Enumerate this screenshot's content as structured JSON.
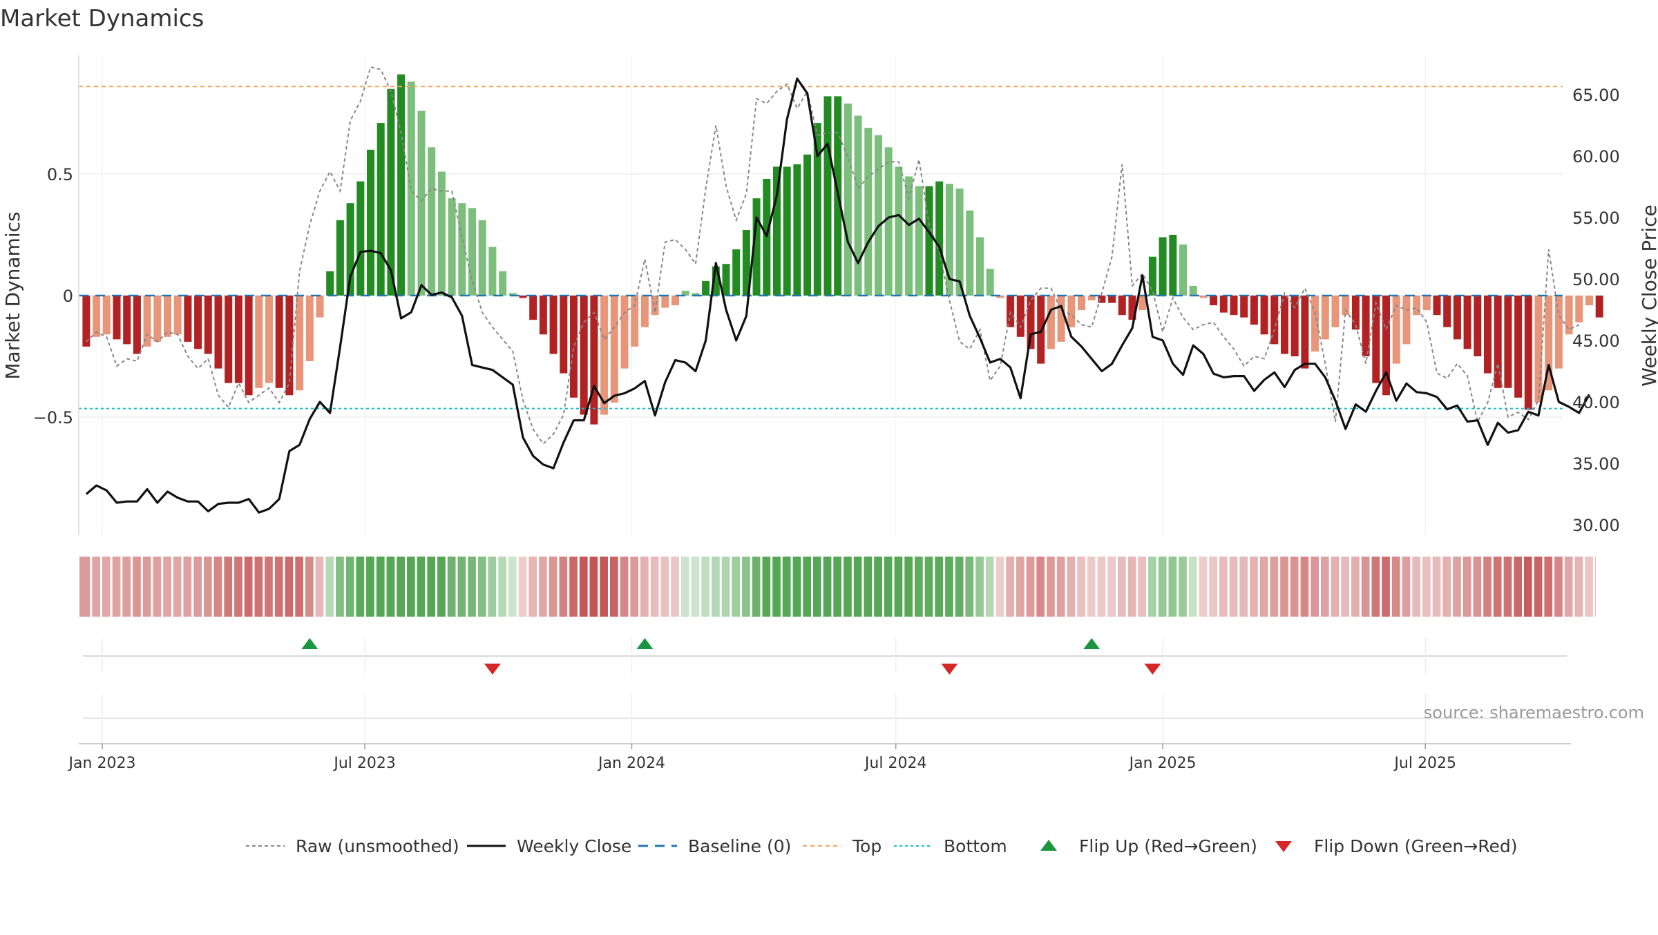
{
  "chart_data": {
    "type": "bar",
    "title": "Market Dynamics",
    "ylabel_left": "Market Dynamics",
    "ylabel_right": "Weekly Close Price",
    "source": "source: sharemaestro.com",
    "left_axis": {
      "ylim": [
        -0.98,
        0.98
      ],
      "ticks": [
        0.5,
        0,
        -0.5
      ],
      "tick_labels": [
        "0.5",
        "0",
        "−0.5"
      ]
    },
    "right_axis": {
      "ylim": [
        29.0,
        68.5
      ],
      "ticks": [
        30,
        35,
        40,
        45,
        50,
        55,
        60,
        65
      ],
      "tick_labels": [
        "30.00",
        "35.00",
        "40.00",
        "45.00",
        "50.00",
        "55.00",
        "60.00",
        "65.00"
      ]
    },
    "x_axis": {
      "start": "2023-01-01",
      "end": "2025-10-12",
      "ticks": [
        "2023-01-01",
        "2023-07-01",
        "2024-01-01",
        "2024-07-01",
        "2025-01-01",
        "2025-07-01"
      ],
      "tick_labels": [
        "Jan 2023",
        "Jul 2023",
        "Jan 2024",
        "Jul 2024",
        "Jan 2025",
        "Jul 2025"
      ]
    },
    "first_week": "2022-12-21",
    "top_level": 0.86,
    "bottom_level": -0.465,
    "colors": {
      "strong_green": "#228b22",
      "light_green": "#7cbf7c",
      "strong_red": "#b22222",
      "light_red": "#e8967a",
      "line": "#111111",
      "raw": "#888888",
      "baseline": "#1f77b4",
      "top": "#f4a460",
      "bottom": "#17becf",
      "flip_up": "#1a9641",
      "flip_down": "#d62728"
    },
    "dynamics": [
      -0.21,
      -0.17,
      -0.16,
      -0.18,
      -0.2,
      -0.24,
      -0.21,
      -0.19,
      -0.17,
      -0.16,
      -0.19,
      -0.22,
      -0.24,
      -0.3,
      -0.36,
      -0.36,
      -0.41,
      -0.38,
      -0.36,
      -0.38,
      -0.41,
      -0.39,
      -0.27,
      -0.09,
      0.1,
      0.31,
      0.38,
      0.47,
      0.6,
      0.71,
      0.85,
      0.91,
      0.88,
      0.76,
      0.61,
      0.51,
      0.4,
      0.38,
      0.36,
      0.31,
      0.2,
      0.1,
      0.01,
      -0.01,
      -0.1,
      -0.16,
      -0.24,
      -0.32,
      -0.42,
      -0.49,
      -0.53,
      -0.49,
      -0.44,
      -0.3,
      -0.21,
      -0.13,
      -0.08,
      -0.05,
      -0.04,
      0.02,
      0.01,
      0.06,
      0.12,
      0.13,
      0.19,
      0.27,
      0.4,
      0.48,
      0.53,
      0.53,
      0.54,
      0.58,
      0.71,
      0.82,
      0.82,
      0.79,
      0.74,
      0.69,
      0.66,
      0.61,
      0.53,
      0.49,
      0.45,
      0.45,
      0.47,
      0.46,
      0.44,
      0.35,
      0.24,
      0.11,
      -0.01,
      -0.13,
      -0.17,
      -0.22,
      -0.28,
      -0.22,
      -0.19,
      -0.13,
      -0.06,
      -0.02,
      -0.03,
      -0.03,
      -0.08,
      -0.1,
      -0.06,
      0.16,
      0.24,
      0.25,
      0.21,
      0.04,
      -0.01,
      -0.04,
      -0.07,
      -0.08,
      -0.09,
      -0.12,
      -0.16,
      -0.2,
      -0.24,
      -0.25,
      -0.3,
      -0.23,
      -0.18,
      -0.13,
      -0.08,
      -0.14,
      -0.25,
      -0.36,
      -0.41,
      -0.28,
      -0.2,
      -0.08,
      -0.06,
      -0.08,
      -0.13,
      -0.18,
      -0.22,
      -0.25,
      -0.32,
      -0.38,
      -0.38,
      -0.42,
      -0.47,
      -0.44,
      -0.39,
      -0.3,
      -0.16,
      -0.11,
      -0.04,
      -0.09
    ],
    "weekly_close": [
      32.5,
      33.2,
      32.8,
      31.8,
      31.9,
      31.9,
      32.9,
      31.8,
      32.7,
      32.2,
      31.9,
      31.9,
      31.1,
      31.7,
      31.8,
      31.8,
      32.1,
      31.0,
      31.3,
      32.1,
      36.0,
      36.5,
      38.6,
      40.0,
      39.1,
      44.5,
      50.2,
      52.2,
      52.3,
      52.1,
      50.7,
      46.8,
      47.3,
      49.5,
      48.7,
      48.9,
      48.5,
      47.0,
      43.0,
      42.8,
      42.6,
      42.0,
      41.4,
      37.1,
      35.6,
      34.9,
      34.6,
      36.7,
      38.5,
      38.5,
      41.3,
      39.9,
      40.5,
      40.7,
      41.1,
      41.7,
      38.9,
      41.6,
      43.4,
      43.2,
      42.5,
      45.0,
      51.3,
      47.5,
      45.0,
      47.0,
      55.0,
      53.5,
      56.8,
      63.0,
      66.3,
      65.1,
      60.0,
      61.0,
      57.0,
      53.0,
      51.3,
      53.0,
      54.3,
      55.0,
      55.2,
      54.4,
      54.9,
      53.8,
      52.6,
      50.0,
      49.8,
      47.0,
      45.2,
      43.2,
      43.5,
      42.8,
      40.3,
      45.5,
      45.7,
      47.5,
      47.8,
      45.3,
      44.5,
      43.5,
      42.5,
      43.1,
      44.6,
      46.0,
      50.3,
      45.3,
      45.0,
      43.1,
      42.2,
      44.6,
      43.9,
      42.3,
      42.0,
      42.1,
      42.1,
      40.9,
      41.8,
      42.4,
      41.2,
      42.6,
      43.1,
      43.1,
      42.0,
      40.1,
      37.8,
      39.8,
      39.2,
      40.9,
      42.4,
      40.1,
      41.5,
      40.8,
      40.7,
      40.4,
      39.4,
      39.7,
      38.4,
      38.5,
      36.5,
      38.3,
      37.5,
      37.7,
      39.2,
      38.9,
      43.0,
      40.0,
      39.6,
      39.1,
      40.6
    ],
    "raw": [
      -0.19,
      -0.15,
      -0.17,
      -0.29,
      -0.26,
      -0.27,
      -0.16,
      -0.19,
      -0.15,
      -0.16,
      -0.25,
      -0.3,
      -0.26,
      -0.41,
      -0.46,
      -0.36,
      -0.44,
      -0.41,
      -0.38,
      -0.44,
      -0.36,
      0.1,
      0.29,
      0.43,
      0.51,
      0.43,
      0.72,
      0.8,
      0.94,
      0.93,
      0.84,
      0.67,
      0.43,
      0.39,
      0.44,
      0.43,
      0.43,
      0.24,
      0.06,
      -0.07,
      -0.13,
      -0.18,
      -0.23,
      -0.43,
      -0.55,
      -0.61,
      -0.57,
      -0.49,
      -0.21,
      -0.11,
      -0.07,
      -0.18,
      -0.13,
      -0.07,
      -0.04,
      0.15,
      -0.07,
      0.22,
      0.23,
      0.19,
      0.13,
      0.44,
      0.7,
      0.45,
      0.31,
      0.42,
      0.81,
      0.79,
      0.84,
      0.87,
      0.77,
      0.84,
      0.66,
      0.67,
      0.67,
      0.57,
      0.44,
      0.49,
      0.52,
      0.55,
      0.55,
      0.4,
      0.56,
      0.29,
      0.18,
      -0.02,
      -0.19,
      -0.22,
      -0.14,
      -0.35,
      -0.29,
      -0.07,
      -0.13,
      -0.02,
      0.03,
      0.03,
      -0.06,
      -0.08,
      -0.12,
      -0.13,
      0.01,
      0.16,
      0.54,
      0.04,
      0.09,
      0.02,
      -0.15,
      -0.01,
      -0.09,
      -0.14,
      -0.12,
      -0.11,
      -0.17,
      -0.22,
      -0.29,
      -0.25,
      -0.26,
      -0.14,
      0.01,
      -0.05,
      0.03,
      -0.07,
      -0.28,
      -0.52,
      -0.06,
      -0.12,
      -0.28,
      -0.03,
      -0.14,
      -0.04,
      -0.06,
      -0.05,
      -0.11,
      -0.32,
      -0.34,
      -0.28,
      -0.33,
      -0.52,
      -0.44,
      -0.28,
      -0.5,
      -0.48,
      -0.51,
      -0.43,
      0.19,
      -0.08,
      -0.14,
      -0.12
    ],
    "flip_up": [
      "2023-05-24",
      "2024-01-10",
      "2024-11-13"
    ],
    "flip_down": [
      "2023-09-27",
      "2024-08-07",
      "2024-12-25"
    ],
    "legend": [
      {
        "label": "Raw (unsmoothed)",
        "style": "raw"
      },
      {
        "label": "Weekly Close",
        "style": "line"
      },
      {
        "label": "Baseline (0)",
        "style": "baseline"
      },
      {
        "label": "Top",
        "style": "top"
      },
      {
        "label": "Bottom",
        "style": "bottom"
      },
      {
        "label": "Flip Up (Red→Green)",
        "style": "flip_up"
      },
      {
        "label": "Flip Down (Green→Red)",
        "style": "flip_down"
      }
    ],
    "grid": true,
    "legend_position": "bottom-center"
  }
}
